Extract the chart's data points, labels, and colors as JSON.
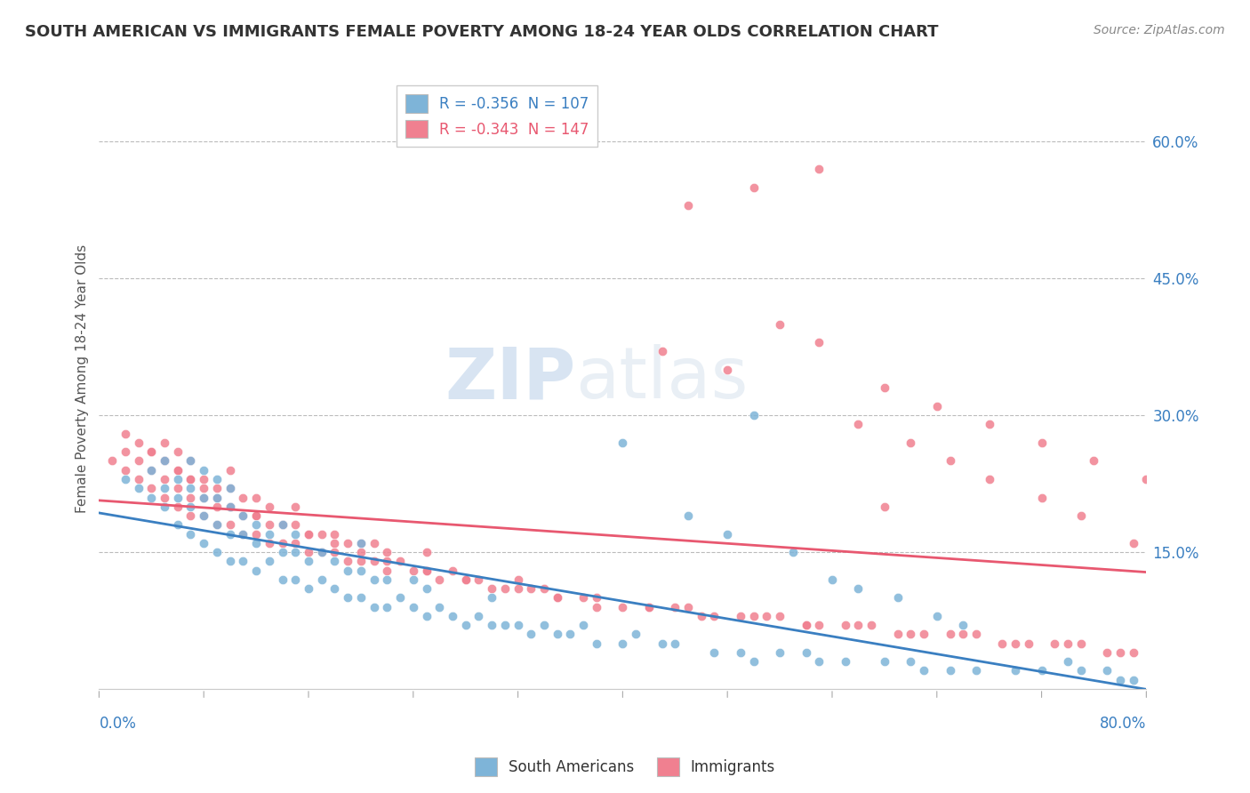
{
  "title": "SOUTH AMERICAN VS IMMIGRANTS FEMALE POVERTY AMONG 18-24 YEAR OLDS CORRELATION CHART",
  "source": "Source: ZipAtlas.com",
  "ylabel": "Female Poverty Among 18-24 Year Olds",
  "xlim": [
    0.0,
    0.8
  ],
  "ylim": [
    0.0,
    0.68
  ],
  "legend_entries": [
    {
      "label": "R = -0.356  N = 107",
      "color": "#a8c4e0"
    },
    {
      "label": "R = -0.343  N = 147",
      "color": "#f4a7b0"
    }
  ],
  "watermark_zip": "ZIP",
  "watermark_atlas": "atlas",
  "sa_color": "#7eb4d8",
  "imm_color": "#f08090",
  "sa_line_color": "#3a7fc1",
  "imm_line_color": "#e85870",
  "legend_label_colors": [
    "#3a7fc1",
    "#e85870"
  ],
  "right_ytick_positions": [
    0.15,
    0.3,
    0.45,
    0.6
  ],
  "right_yticklabels": [
    "15.0%",
    "30.0%",
    "45.0%",
    "60.0%"
  ],
  "south_american_x": [
    0.02,
    0.03,
    0.04,
    0.04,
    0.05,
    0.05,
    0.05,
    0.06,
    0.06,
    0.06,
    0.07,
    0.07,
    0.07,
    0.07,
    0.08,
    0.08,
    0.08,
    0.08,
    0.09,
    0.09,
    0.09,
    0.09,
    0.1,
    0.1,
    0.1,
    0.1,
    0.11,
    0.11,
    0.11,
    0.12,
    0.12,
    0.12,
    0.13,
    0.13,
    0.14,
    0.14,
    0.14,
    0.15,
    0.15,
    0.15,
    0.16,
    0.16,
    0.17,
    0.17,
    0.18,
    0.18,
    0.19,
    0.19,
    0.2,
    0.2,
    0.2,
    0.21,
    0.21,
    0.22,
    0.22,
    0.23,
    0.24,
    0.24,
    0.25,
    0.25,
    0.26,
    0.27,
    0.28,
    0.29,
    0.3,
    0.3,
    0.31,
    0.32,
    0.33,
    0.34,
    0.35,
    0.36,
    0.37,
    0.38,
    0.4,
    0.41,
    0.43,
    0.44,
    0.47,
    0.49,
    0.5,
    0.52,
    0.54,
    0.55,
    0.57,
    0.6,
    0.62,
    0.63,
    0.65,
    0.67,
    0.7,
    0.72,
    0.74,
    0.75,
    0.77,
    0.78,
    0.79,
    0.4,
    0.45,
    0.48,
    0.5,
    0.53,
    0.56,
    0.58,
    0.61,
    0.64,
    0.66
  ],
  "south_american_y": [
    0.23,
    0.22,
    0.21,
    0.24,
    0.2,
    0.22,
    0.25,
    0.18,
    0.21,
    0.23,
    0.17,
    0.2,
    0.22,
    0.25,
    0.16,
    0.19,
    0.21,
    0.24,
    0.15,
    0.18,
    0.21,
    0.23,
    0.14,
    0.17,
    0.2,
    0.22,
    0.14,
    0.17,
    0.19,
    0.13,
    0.16,
    0.18,
    0.14,
    0.17,
    0.12,
    0.15,
    0.18,
    0.12,
    0.15,
    0.17,
    0.11,
    0.14,
    0.12,
    0.15,
    0.11,
    0.14,
    0.1,
    0.13,
    0.1,
    0.13,
    0.16,
    0.09,
    0.12,
    0.09,
    0.12,
    0.1,
    0.09,
    0.12,
    0.08,
    0.11,
    0.09,
    0.08,
    0.07,
    0.08,
    0.07,
    0.1,
    0.07,
    0.07,
    0.06,
    0.07,
    0.06,
    0.06,
    0.07,
    0.05,
    0.05,
    0.06,
    0.05,
    0.05,
    0.04,
    0.04,
    0.03,
    0.04,
    0.04,
    0.03,
    0.03,
    0.03,
    0.03,
    0.02,
    0.02,
    0.02,
    0.02,
    0.02,
    0.03,
    0.02,
    0.02,
    0.01,
    0.01,
    0.27,
    0.19,
    0.17,
    0.3,
    0.15,
    0.12,
    0.11,
    0.1,
    0.08,
    0.07
  ],
  "immigrants_x": [
    0.01,
    0.02,
    0.02,
    0.03,
    0.03,
    0.04,
    0.04,
    0.04,
    0.05,
    0.05,
    0.05,
    0.05,
    0.06,
    0.06,
    0.06,
    0.06,
    0.07,
    0.07,
    0.07,
    0.07,
    0.08,
    0.08,
    0.08,
    0.09,
    0.09,
    0.09,
    0.1,
    0.1,
    0.1,
    0.1,
    0.11,
    0.11,
    0.11,
    0.12,
    0.12,
    0.12,
    0.13,
    0.13,
    0.13,
    0.14,
    0.14,
    0.15,
    0.15,
    0.15,
    0.16,
    0.16,
    0.17,
    0.17,
    0.18,
    0.18,
    0.19,
    0.19,
    0.2,
    0.2,
    0.21,
    0.21,
    0.22,
    0.22,
    0.23,
    0.24,
    0.25,
    0.25,
    0.26,
    0.27,
    0.28,
    0.29,
    0.3,
    0.31,
    0.32,
    0.33,
    0.34,
    0.35,
    0.37,
    0.38,
    0.4,
    0.42,
    0.44,
    0.45,
    0.47,
    0.49,
    0.51,
    0.52,
    0.54,
    0.55,
    0.57,
    0.59,
    0.61,
    0.63,
    0.65,
    0.67,
    0.69,
    0.71,
    0.73,
    0.75,
    0.77,
    0.79,
    0.02,
    0.03,
    0.04,
    0.05,
    0.06,
    0.07,
    0.08,
    0.09,
    0.1,
    0.12,
    0.14,
    0.16,
    0.18,
    0.2,
    0.22,
    0.25,
    0.28,
    0.32,
    0.35,
    0.38,
    0.42,
    0.46,
    0.5,
    0.54,
    0.58,
    0.62,
    0.66,
    0.7,
    0.74,
    0.78,
    0.58,
    0.62,
    0.65,
    0.68,
    0.72,
    0.75,
    0.79,
    0.43,
    0.48,
    0.52,
    0.55,
    0.6,
    0.64,
    0.68,
    0.72,
    0.76,
    0.8,
    0.45,
    0.5,
    0.55,
    0.6
  ],
  "immigrants_y": [
    0.25,
    0.24,
    0.26,
    0.23,
    0.25,
    0.22,
    0.24,
    0.26,
    0.21,
    0.23,
    0.25,
    0.27,
    0.2,
    0.22,
    0.24,
    0.26,
    0.19,
    0.21,
    0.23,
    0.25,
    0.19,
    0.21,
    0.23,
    0.18,
    0.2,
    0.22,
    0.18,
    0.2,
    0.22,
    0.24,
    0.17,
    0.19,
    0.21,
    0.17,
    0.19,
    0.21,
    0.16,
    0.18,
    0.2,
    0.16,
    0.18,
    0.16,
    0.18,
    0.2,
    0.15,
    0.17,
    0.15,
    0.17,
    0.15,
    0.17,
    0.14,
    0.16,
    0.14,
    0.16,
    0.14,
    0.16,
    0.13,
    0.15,
    0.14,
    0.13,
    0.13,
    0.15,
    0.12,
    0.13,
    0.12,
    0.12,
    0.11,
    0.11,
    0.12,
    0.11,
    0.11,
    0.1,
    0.1,
    0.1,
    0.09,
    0.09,
    0.09,
    0.09,
    0.08,
    0.08,
    0.08,
    0.08,
    0.07,
    0.07,
    0.07,
    0.07,
    0.06,
    0.06,
    0.06,
    0.06,
    0.05,
    0.05,
    0.05,
    0.05,
    0.04,
    0.04,
    0.28,
    0.27,
    0.26,
    0.25,
    0.24,
    0.23,
    0.22,
    0.21,
    0.2,
    0.19,
    0.18,
    0.17,
    0.16,
    0.15,
    0.14,
    0.13,
    0.12,
    0.11,
    0.1,
    0.09,
    0.09,
    0.08,
    0.08,
    0.07,
    0.07,
    0.06,
    0.06,
    0.05,
    0.05,
    0.04,
    0.29,
    0.27,
    0.25,
    0.23,
    0.21,
    0.19,
    0.16,
    0.37,
    0.35,
    0.4,
    0.38,
    0.33,
    0.31,
    0.29,
    0.27,
    0.25,
    0.23,
    0.53,
    0.55,
    0.57,
    0.2
  ]
}
